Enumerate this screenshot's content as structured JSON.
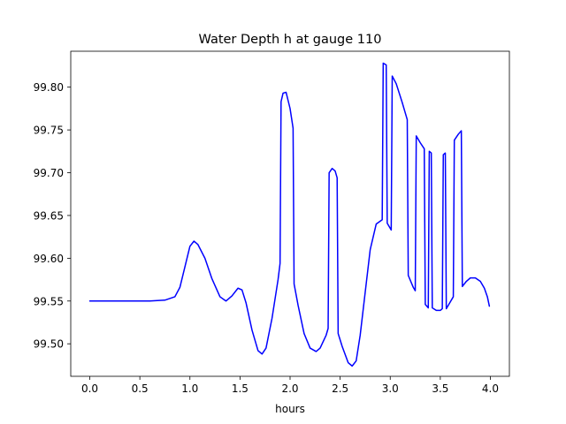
{
  "chart_data": {
    "type": "line",
    "title": "Water Depth h at gauge 110",
    "xlabel": "hours",
    "ylabel": "",
    "xlim": [
      -0.19,
      4.19
    ],
    "ylim": [
      99.462,
      99.842
    ],
    "xticks": [
      0.0,
      0.5,
      1.0,
      1.5,
      2.0,
      2.5,
      3.0,
      3.5,
      4.0
    ],
    "xtick_labels": [
      "0.0",
      "0.5",
      "1.0",
      "1.5",
      "2.0",
      "2.5",
      "3.0",
      "3.5",
      "4.0"
    ],
    "yticks": [
      99.5,
      99.55,
      99.6,
      99.65,
      99.7,
      99.75,
      99.8
    ],
    "ytick_labels": [
      "99.50",
      "99.55",
      "99.60",
      "99.65",
      "99.70",
      "99.75",
      "99.80"
    ],
    "grid": false,
    "series": [
      {
        "color": "#0000ff",
        "points": [
          [
            0.0,
            99.55
          ],
          [
            0.3,
            99.55
          ],
          [
            0.6,
            99.55
          ],
          [
            0.75,
            99.551
          ],
          [
            0.85,
            99.555
          ],
          [
            0.9,
            99.566
          ],
          [
            0.95,
            99.59
          ],
          [
            1.0,
            99.614
          ],
          [
            1.04,
            99.62
          ],
          [
            1.08,
            99.616
          ],
          [
            1.15,
            99.6
          ],
          [
            1.22,
            99.576
          ],
          [
            1.3,
            99.555
          ],
          [
            1.36,
            99.55
          ],
          [
            1.42,
            99.556
          ],
          [
            1.48,
            99.565
          ],
          [
            1.52,
            99.563
          ],
          [
            1.56,
            99.548
          ],
          [
            1.62,
            99.516
          ],
          [
            1.68,
            99.492
          ],
          [
            1.72,
            99.488
          ],
          [
            1.76,
            99.495
          ],
          [
            1.82,
            99.53
          ],
          [
            1.88,
            99.575
          ],
          [
            1.9,
            99.594
          ],
          [
            1.91,
            99.783
          ],
          [
            1.93,
            99.793
          ],
          [
            1.96,
            99.794
          ],
          [
            2.0,
            99.775
          ],
          [
            2.03,
            99.752
          ],
          [
            2.04,
            99.57
          ],
          [
            2.08,
            99.545
          ],
          [
            2.14,
            99.512
          ],
          [
            2.2,
            99.495
          ],
          [
            2.26,
            99.491
          ],
          [
            2.3,
            99.495
          ],
          [
            2.36,
            99.51
          ],
          [
            2.38,
            99.518
          ],
          [
            2.39,
            99.7
          ],
          [
            2.42,
            99.705
          ],
          [
            2.45,
            99.702
          ],
          [
            2.47,
            99.694
          ],
          [
            2.48,
            99.512
          ],
          [
            2.52,
            99.497
          ],
          [
            2.58,
            99.478
          ],
          [
            2.62,
            99.474
          ],
          [
            2.66,
            99.48
          ],
          [
            2.7,
            99.51
          ],
          [
            2.75,
            99.56
          ],
          [
            2.8,
            99.61
          ],
          [
            2.86,
            99.64
          ],
          [
            2.92,
            99.645
          ],
          [
            2.93,
            99.828
          ],
          [
            2.96,
            99.826
          ],
          [
            2.97,
            99.641
          ],
          [
            3.01,
            99.633
          ],
          [
            3.02,
            99.813
          ],
          [
            3.06,
            99.804
          ],
          [
            3.12,
            99.782
          ],
          [
            3.17,
            99.762
          ],
          [
            3.18,
            99.58
          ],
          [
            3.23,
            99.566
          ],
          [
            3.25,
            99.562
          ],
          [
            3.26,
            99.743
          ],
          [
            3.3,
            99.735
          ],
          [
            3.34,
            99.728
          ],
          [
            3.35,
            99.546
          ],
          [
            3.38,
            99.542
          ],
          [
            3.39,
            99.725
          ],
          [
            3.41,
            99.723
          ],
          [
            3.42,
            99.542
          ],
          [
            3.46,
            99.539
          ],
          [
            3.5,
            99.539
          ],
          [
            3.52,
            99.541
          ],
          [
            3.53,
            99.721
          ],
          [
            3.55,
            99.723
          ],
          [
            3.56,
            99.541
          ],
          [
            3.6,
            99.549
          ],
          [
            3.63,
            99.555
          ],
          [
            3.64,
            99.738
          ],
          [
            3.68,
            99.745
          ],
          [
            3.71,
            99.749
          ],
          [
            3.72,
            99.567
          ],
          [
            3.76,
            99.573
          ],
          [
            3.8,
            99.577
          ],
          [
            3.85,
            99.577
          ],
          [
            3.9,
            99.573
          ],
          [
            3.94,
            99.565
          ],
          [
            3.97,
            99.555
          ],
          [
            3.99,
            99.544
          ]
        ]
      }
    ]
  }
}
